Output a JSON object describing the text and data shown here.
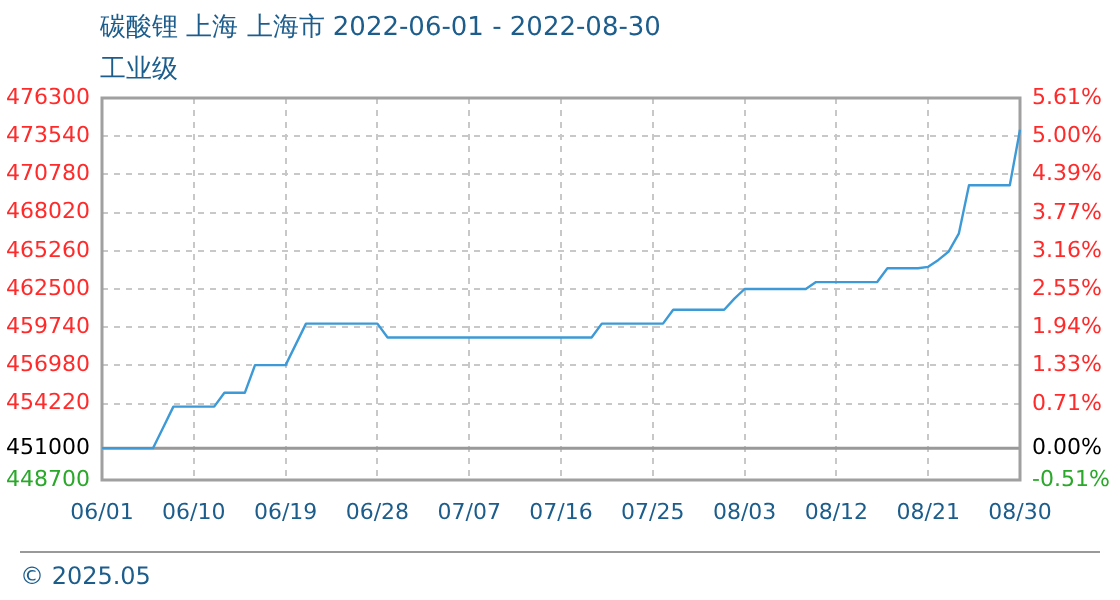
{
  "chart_data": {
    "type": "line",
    "title": "碳酸锂 上海 上海市 2022-06-01 - 2022-08-30",
    "subtitle": "工业级",
    "categories": [
      "06/01",
      null,
      null,
      null,
      null,
      null,
      null,
      null,
      null,
      "06/10",
      null,
      null,
      null,
      null,
      null,
      null,
      null,
      null,
      "06/19",
      null,
      null,
      null,
      null,
      null,
      null,
      null,
      null,
      "06/28",
      null,
      null,
      null,
      null,
      null,
      null,
      null,
      null,
      "07/07",
      null,
      null,
      null,
      null,
      null,
      null,
      null,
      null,
      "07/16",
      null,
      null,
      null,
      null,
      null,
      null,
      null,
      null,
      "07/25",
      null,
      null,
      null,
      null,
      null,
      null,
      null,
      null,
      "08/03",
      null,
      null,
      null,
      null,
      null,
      null,
      null,
      null,
      "08/12",
      null,
      null,
      null,
      null,
      null,
      null,
      null,
      null,
      "08/21",
      null,
      null,
      null,
      null,
      null,
      null,
      null,
      null,
      "08/30"
    ],
    "series": [
      {
        "color": "#3d9ad6",
        "values": [
          451000,
          451000,
          451000,
          451000,
          451000,
          451000,
          452500,
          454000,
          454000,
          454000,
          454000,
          454000,
          455000,
          455000,
          455000,
          457000,
          457000,
          457000,
          457000,
          458500,
          460000,
          460000,
          460000,
          460000,
          460000,
          460000,
          460000,
          460000,
          459000,
          459000,
          459000,
          459000,
          459000,
          459000,
          459000,
          459000,
          459000,
          459000,
          459000,
          459000,
          459000,
          459000,
          459000,
          459000,
          459000,
          459000,
          459000,
          459000,
          459000,
          460000,
          460000,
          460000,
          460000,
          460000,
          460000,
          460000,
          461000,
          461000,
          461000,
          461000,
          461000,
          461000,
          461800,
          462500,
          462500,
          462500,
          462500,
          462500,
          462500,
          462500,
          463000,
          463000,
          463000,
          463000,
          463000,
          463000,
          463000,
          464000,
          464000,
          464000,
          464000,
          464100,
          464600,
          465200,
          466500,
          470000,
          470000,
          470000,
          470000,
          470000,
          474000
        ]
      }
    ],
    "ylim": [
      448700,
      476300
    ],
    "yticks": [
      448700,
      451000,
      454220,
      456980,
      459740,
      462500,
      465260,
      468020,
      470780,
      473540,
      476300
    ],
    "y2lim": [
      -0.51,
      5.61
    ],
    "y2ticks": [
      {
        "value": -0.51,
        "label": "-0.51%"
      },
      {
        "value": 0,
        "label": "0.00%"
      },
      {
        "value": 0.71,
        "label": "0.71%"
      },
      {
        "value": 1.33,
        "label": "1.33%"
      },
      {
        "value": 1.94,
        "label": "1.94%"
      },
      {
        "value": 2.55,
        "label": "2.55%"
      },
      {
        "value": 3.16,
        "label": "3.16%"
      },
      {
        "value": 3.77,
        "label": "3.77%"
      },
      {
        "value": 4.39,
        "label": "4.39%"
      },
      {
        "value": 5.0,
        "label": "5.00%"
      },
      {
        "value": 5.61,
        "label": "5.61%"
      }
    ],
    "ref_lines": [
      {
        "axis": "y",
        "value": 451000,
        "color": "#999999"
      }
    ],
    "grid": true,
    "legend": false,
    "marker": "none",
    "line_style": "solid",
    "annotations": [
      "© 2025.05"
    ]
  }
}
